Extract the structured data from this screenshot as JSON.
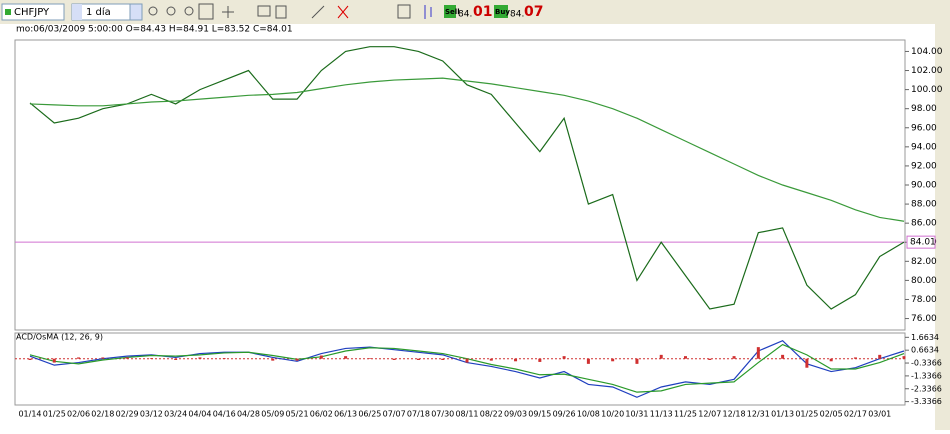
{
  "toolbar": {
    "symbol": "CHFJPY",
    "timeframe": "1 día",
    "sell": {
      "label": "Sell",
      "price_small": "84.",
      "price_big": "01"
    },
    "buy": {
      "label": "Buy",
      "price_small": "84.",
      "price_big": "07"
    }
  },
  "info": "mo:06/03/2009 5:00:00 O=84.43 H=84.91 L=83.52 C=84.01",
  "chart_data": {
    "type": "line",
    "categories": [
      "01/14",
      "01/25",
      "02/06",
      "02/18",
      "02/29",
      "03/12",
      "03/24",
      "04/04",
      "04/16",
      "04/28",
      "05/09",
      "05/21",
      "06/02",
      "06/13",
      "06/25",
      "07/07",
      "07/18",
      "07/30",
      "08/11",
      "08/22",
      "09/03",
      "09/15",
      "09/26",
      "10/08",
      "10/20",
      "10/31",
      "11/13",
      "11/25",
      "12/07",
      "12/18",
      "12/31",
      "01/13",
      "01/25",
      "02/05",
      "02/17",
      "03/01",
      null
    ],
    "series": [
      {
        "color": "#1b6b1b",
        "values": [
          98.6,
          96.5,
          97.0,
          98.0,
          98.5,
          99.5,
          98.5,
          100.0,
          101.0,
          102.0,
          99.0,
          99.0,
          102.0,
          104.0,
          104.5,
          104.5,
          104.0,
          103.0,
          100.5,
          99.5,
          96.5,
          93.5,
          97.0,
          88.0,
          89.0,
          80.0,
          84.0,
          80.5,
          77.0,
          77.5,
          85.0,
          85.5,
          79.5,
          77.0,
          78.5,
          82.5,
          84.01
        ]
      },
      {
        "color": "#3a9a3a",
        "values": [
          98.5,
          98.4,
          98.3,
          98.3,
          98.5,
          98.7,
          98.8,
          99.0,
          99.2,
          99.4,
          99.5,
          99.7,
          100.1,
          100.5,
          100.8,
          101.0,
          101.1,
          101.2,
          100.9,
          100.6,
          100.2,
          99.8,
          99.4,
          98.8,
          98.0,
          97.0,
          95.8,
          94.6,
          93.4,
          92.2,
          91.0,
          90.0,
          89.2,
          88.4,
          87.4,
          86.6,
          86.2
        ]
      }
    ],
    "ylim": [
      74.8,
      105.2
    ],
    "yticks": [
      {
        "value": 76,
        "label": "76.00"
      },
      {
        "value": 78,
        "label": "78.00"
      },
      {
        "value": 80,
        "label": "80.00"
      },
      {
        "value": 82,
        "label": "82.00"
      },
      {
        "value": 84,
        "label": "84.00"
      },
      {
        "value": 86,
        "label": "86.00"
      },
      {
        "value": 88,
        "label": "88.00"
      },
      {
        "value": 90,
        "label": "90.00"
      },
      {
        "value": 92,
        "label": "92.00"
      },
      {
        "value": 94,
        "label": "94.00"
      },
      {
        "value": 96,
        "label": "96.00"
      },
      {
        "value": 98,
        "label": "98.00"
      },
      {
        "value": 100,
        "label": "100.00"
      },
      {
        "value": 102,
        "label": "102.00"
      },
      {
        "value": 104,
        "label": "104.00"
      }
    ],
    "price_line": {
      "value": 84.01,
      "label": "84.01",
      "color": "#d070d0"
    },
    "indicator": {
      "title": "ACD/OsMA (12, 26, 9)",
      "ylim": [
        -3.6,
        2.0
      ],
      "yticks": [
        1.6634,
        0.6634,
        -0.3366,
        -1.3366,
        -2.3366,
        -3.3366
      ],
      "series": [
        {
          "color": "#1f3fbf",
          "values": [
            0.2,
            -0.5,
            -0.3,
            0,
            0.2,
            0.3,
            0.1,
            0.4,
            0.5,
            0.5,
            0.1,
            -0.2,
            0.4,
            0.8,
            0.9,
            0.7,
            0.5,
            0.3,
            -0.3,
            -0.6,
            -1.0,
            -1.5,
            -1.0,
            -2.0,
            -2.2,
            -3.0,
            -2.2,
            -1.8,
            -2.0,
            -1.6,
            0.6,
            1.4,
            -0.4,
            -1.0,
            -0.7,
            0.0,
            0.6
          ]
        },
        {
          "color": "#2a9a2a",
          "values": [
            0.3,
            -0.2,
            -0.4,
            -0.1,
            0.1,
            0.25,
            0.2,
            0.3,
            0.45,
            0.5,
            0.25,
            -0.05,
            0.15,
            0.6,
            0.85,
            0.8,
            0.6,
            0.4,
            0.0,
            -0.45,
            -0.8,
            -1.25,
            -1.2,
            -1.6,
            -2.0,
            -2.6,
            -2.5,
            -2.0,
            -1.9,
            -1.8,
            -0.3,
            1.1,
            0.3,
            -0.8,
            -0.8,
            -0.3,
            0.4
          ]
        },
        {
          "type": "bar",
          "color": "#d03030",
          "values": [
            -0.1,
            -0.3,
            0.1,
            0.1,
            0.1,
            0.05,
            -0.1,
            0.1,
            0.05,
            0,
            -0.15,
            -0.15,
            0.25,
            0.2,
            0.05,
            -0.1,
            -0.1,
            -0.1,
            -0.3,
            -0.15,
            -0.2,
            -0.25,
            0.2,
            -0.4,
            -0.2,
            -0.4,
            0.3,
            0.2,
            -0.1,
            0.2,
            0.9,
            0.3,
            -0.7,
            -0.2,
            0.1,
            0.3,
            0.2
          ]
        }
      ]
    }
  }
}
